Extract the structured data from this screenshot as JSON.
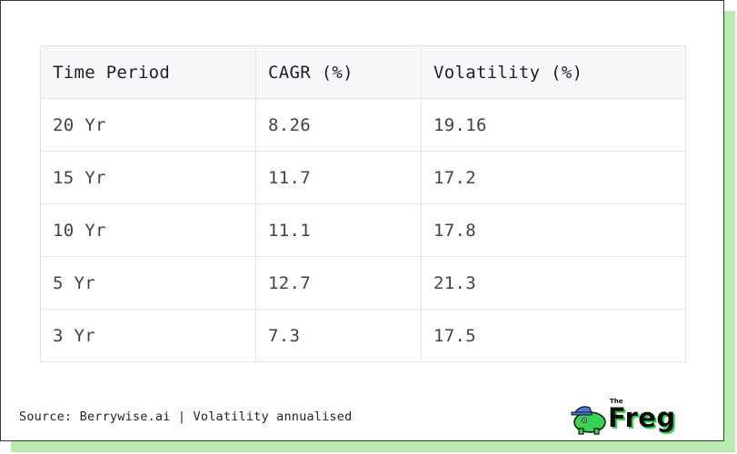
{
  "table": {
    "headers": [
      "Time Period",
      "CAGR (%)",
      "Volatility (%)"
    ],
    "rows": [
      [
        "20 Yr",
        "8.26",
        "19.16"
      ],
      [
        "15 Yr",
        "11.7",
        "17.2"
      ],
      [
        "10 Yr",
        "11.1",
        "17.8"
      ],
      [
        "5 Yr",
        "12.7",
        "21.3"
      ],
      [
        "3 Yr",
        "7.3",
        "17.5"
      ]
    ]
  },
  "footer": {
    "source": "Source: Berrywise.ai | Volatility annualised"
  },
  "logo": {
    "small": "The",
    "word": "Freg",
    "icon": "frog-mascot-icon"
  },
  "colors": {
    "accent_green": "#39d353",
    "shadow_green": "#b9ebb0"
  }
}
